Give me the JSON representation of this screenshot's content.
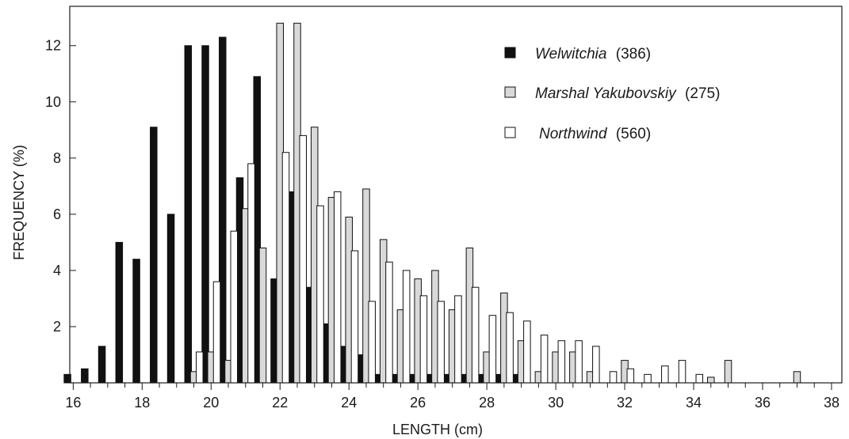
{
  "chart_data": {
    "type": "bar",
    "xlabel": "LENGTH (cm)",
    "ylabel": "FREQUENCY (%)",
    "xlim": [
      15.9,
      38.3
    ],
    "ylim": [
      0,
      13.4
    ],
    "x_ticks": [
      "16",
      "18",
      "20",
      "22",
      "24",
      "26",
      "28",
      "30",
      "32",
      "34",
      "36",
      "38"
    ],
    "y_ticks": [
      "2",
      "4",
      "6",
      "8",
      "10",
      "12"
    ],
    "grid": false,
    "legend_position": "top-right",
    "bin_width_cm": 0.5,
    "series": [
      {
        "name": "Welwitchia",
        "count_label": "(386)",
        "fill": "#111111",
        "x": [
          16.0,
          16.5,
          17.0,
          17.5,
          18.0,
          18.5,
          19.0,
          19.5,
          20.0,
          20.5,
          21.0,
          21.5,
          22.0,
          22.5,
          23.0,
          23.5,
          24.0,
          24.5,
          25.0,
          25.5,
          26.0,
          26.5,
          27.0,
          27.5,
          28.0,
          28.5,
          29.0
        ],
        "values": [
          0.3,
          0.5,
          1.3,
          5.0,
          4.4,
          9.1,
          6.0,
          12.0,
          12.0,
          12.3,
          7.3,
          10.9,
          3.7,
          6.8,
          3.4,
          2.1,
          1.3,
          1.0,
          0.3,
          0.3,
          0.3,
          0.3,
          0.3,
          0.3,
          0.3,
          0.3,
          0.3
        ]
      },
      {
        "name": "Marshal Yakubovskiy",
        "count_label": "(275)",
        "fill": "#d9d9d9",
        "x": [
          19.5,
          20.0,
          20.5,
          21.0,
          21.5,
          22.0,
          22.5,
          23.0,
          23.5,
          24.0,
          24.5,
          25.0,
          25.5,
          26.0,
          26.5,
          27.0,
          27.5,
          28.0,
          28.5,
          29.0,
          29.5,
          30.0,
          30.5,
          31.0,
          31.5,
          32.0,
          32.5,
          33.0,
          33.5,
          34.0,
          34.5,
          35.0,
          35.5,
          36.0,
          36.5,
          37.0
        ],
        "values": [
          0.4,
          1.1,
          0.8,
          6.2,
          4.8,
          12.8,
          12.8,
          9.1,
          6.6,
          5.9,
          6.9,
          5.1,
          2.6,
          3.7,
          4.0,
          2.6,
          4.8,
          1.1,
          3.2,
          1.5,
          0.4,
          1.1,
          1.1,
          0.4,
          0,
          0.8,
          0,
          0,
          0,
          0,
          0.2,
          0.8,
          0,
          0,
          0,
          0.4
        ]
      },
      {
        "name": "Northwind",
        "count_label": "(560)",
        "fill": "#ffffff",
        "x": [
          19.5,
          20.0,
          20.5,
          21.0,
          21.5,
          22.0,
          22.5,
          23.0,
          23.5,
          24.0,
          24.5,
          25.0,
          25.5,
          26.0,
          26.5,
          27.0,
          27.5,
          28.0,
          28.5,
          29.0,
          29.5,
          30.0,
          30.5,
          31.0,
          31.5,
          32.0,
          32.5,
          33.0,
          33.5,
          34.0,
          34.5,
          35.0
        ],
        "values": [
          1.1,
          3.6,
          5.4,
          7.8,
          0,
          8.2,
          8.8,
          6.3,
          6.8,
          4.7,
          2.9,
          4.3,
          4.0,
          3.1,
          2.9,
          3.1,
          3.4,
          2.4,
          2.5,
          2.2,
          1.7,
          1.5,
          1.5,
          1.3,
          0.4,
          0.5,
          0.3,
          0.6,
          0.8,
          0.3,
          0,
          0
        ]
      }
    ]
  }
}
